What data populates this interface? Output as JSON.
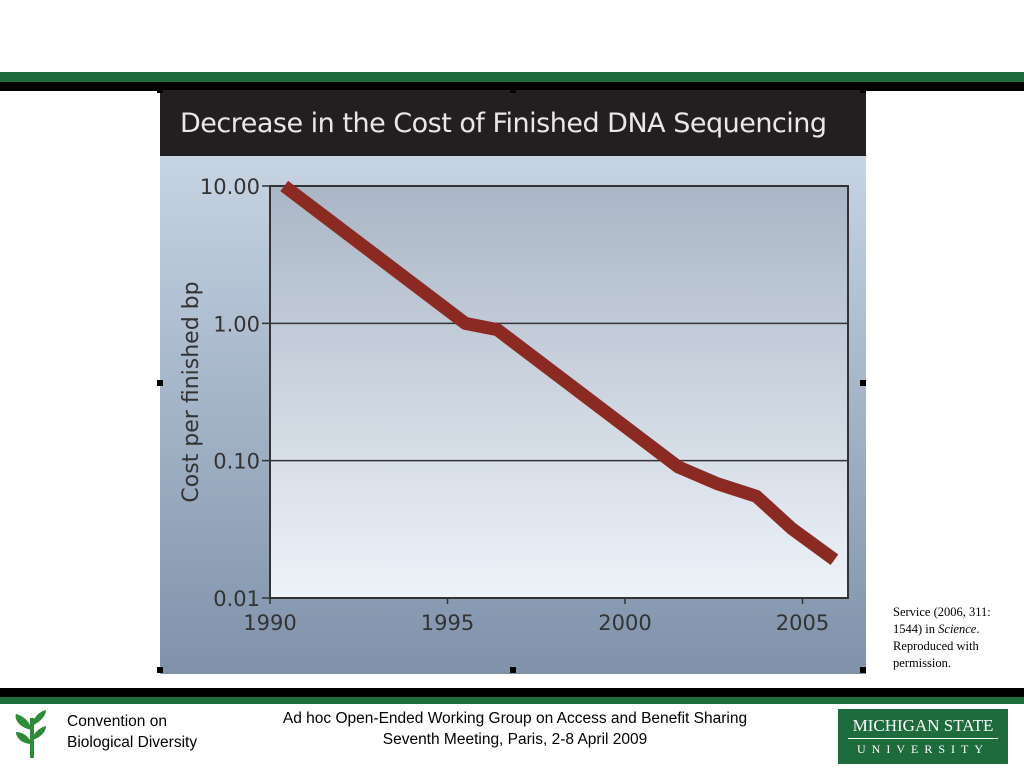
{
  "colors": {
    "green": "#1e6b3c",
    "line": "#8b2a22",
    "titlebar": "#231f20"
  },
  "chart_data": {
    "type": "line",
    "title": "Decrease in the Cost of Finished DNA Sequencing",
    "xlabel": "",
    "ylabel": "Cost per finished bp",
    "yscale": "log",
    "xlim": [
      1990,
      2006.4
    ],
    "ylim": [
      0.01,
      10
    ],
    "xticks": [
      1990,
      1995,
      2000,
      2005
    ],
    "xtick_labels": [
      "1990",
      "1995",
      "2000",
      "2005"
    ],
    "yticks": [
      10,
      1,
      0.1,
      0.01
    ],
    "ytick_labels": [
      "10.00",
      "1.00",
      "0.10",
      "0.01"
    ],
    "grid": "horizontal",
    "series": [
      {
        "name": "Cost per finished bp",
        "x": [
          1990.4,
          1995.5,
          1996.4,
          2001.5,
          2002.6,
          2003.7,
          2004.7,
          2005.9
        ],
        "y": [
          10,
          1.0,
          0.9,
          0.09,
          0.068,
          0.055,
          0.032,
          0.019
        ]
      }
    ]
  },
  "caption": {
    "pre": "Service (2006, 311: 1544) in ",
    "italic": "Science",
    "post": ". Reproduced with permission."
  },
  "footer": {
    "cbd_line1": "Convention on",
    "cbd_line2": "Biological Diversity",
    "meeting_line1": "Ad hoc Open-Ended Working Group on Access and Benefit Sharing",
    "meeting_line2": "Seventh Meeting, Paris, 2-8 April 2009",
    "msu_line1": "MICHIGAN STATE",
    "msu_line2": "UNIVERSITY"
  }
}
